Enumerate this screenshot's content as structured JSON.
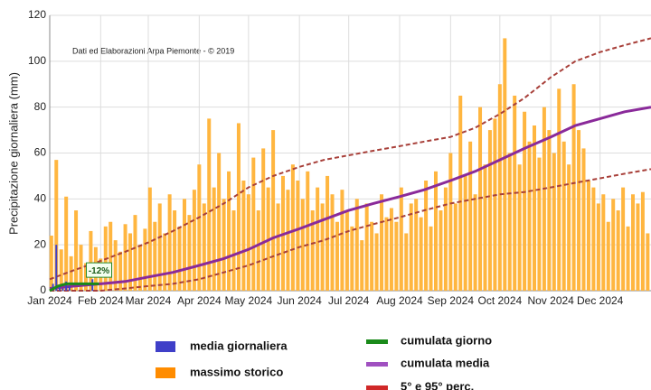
{
  "chart_data": {
    "type": "bar",
    "credit": "Dati ed Elaborazioni Arpa Piemonte - © 2019",
    "y_label": "Precipitazione giornaliera (mm)",
    "annotation": {
      "text": "-12%",
      "x": 30,
      "y": 9
    },
    "xlim": [
      0,
      366
    ],
    "xticks": [
      {
        "value": 0,
        "label": "Jan 2024"
      },
      {
        "value": 31,
        "label": "Feb 2024"
      },
      {
        "value": 60,
        "label": "Mar 2024"
      },
      {
        "value": 91,
        "label": "Apr 2024"
      },
      {
        "value": 121,
        "label": "May 2024"
      },
      {
        "value": 152,
        "label": "Jun 2024"
      },
      {
        "value": 182,
        "label": "Jul 2024"
      },
      {
        "value": 213,
        "label": "Aug 2024"
      },
      {
        "value": 244,
        "label": "Sep 2024"
      },
      {
        "value": 274,
        "label": "Oct 2024"
      },
      {
        "value": 305,
        "label": "Nov 2024"
      },
      {
        "value": 335,
        "label": "Dec 2024"
      }
    ],
    "ylim": [
      0,
      120
    ],
    "yticks": [
      0,
      20,
      40,
      60,
      80,
      100,
      120
    ],
    "grid": true,
    "series": [
      {
        "name": "media giornaliera",
        "type": "bar",
        "color": "#3f3fc8",
        "x": [
          2,
          4,
          6,
          8,
          10,
          12,
          26
        ],
        "values": [
          3,
          20,
          2,
          1,
          4,
          2,
          5
        ]
      },
      {
        "name": "massimo storico",
        "type": "bar",
        "color": "#ffb640",
        "x": [
          1,
          4,
          7,
          10,
          13,
          16,
          19,
          22,
          25,
          28,
          31,
          34,
          37,
          40,
          43,
          46,
          49,
          52,
          55,
          58,
          61,
          64,
          67,
          70,
          73,
          76,
          79,
          82,
          85,
          88,
          91,
          94,
          97,
          100,
          103,
          106,
          109,
          112,
          115,
          118,
          121,
          124,
          127,
          130,
          133,
          136,
          139,
          142,
          145,
          148,
          151,
          154,
          157,
          160,
          163,
          166,
          169,
          172,
          175,
          178,
          181,
          184,
          187,
          190,
          193,
          196,
          199,
          202,
          205,
          208,
          211,
          214,
          217,
          220,
          223,
          226,
          229,
          232,
          235,
          238,
          241,
          244,
          247,
          250,
          253,
          256,
          259,
          262,
          265,
          268,
          271,
          274,
          277,
          280,
          283,
          286,
          289,
          292,
          295,
          298,
          301,
          304,
          307,
          310,
          313,
          316,
          319,
          322,
          325,
          328,
          331,
          334,
          337,
          340,
          343,
          346,
          349,
          352,
          355,
          358,
          361,
          364
        ],
        "values": [
          24,
          57,
          18,
          41,
          15,
          35,
          20,
          12,
          26,
          19,
          14,
          28,
          30,
          22,
          17,
          29,
          25,
          33,
          20,
          27,
          45,
          30,
          38,
          25,
          42,
          35,
          28,
          40,
          33,
          44,
          55,
          38,
          75,
          45,
          60,
          40,
          52,
          35,
          73,
          48,
          42,
          58,
          35,
          62,
          45,
          70,
          38,
          50,
          44,
          55,
          48,
          40,
          52,
          35,
          45,
          38,
          50,
          42,
          30,
          44,
          35,
          28,
          40,
          22,
          38,
          30,
          25,
          42,
          32,
          36,
          30,
          45,
          25,
          38,
          40,
          32,
          48,
          28,
          52,
          35,
          45,
          60,
          38,
          85,
          50,
          65,
          42,
          80,
          55,
          70,
          75,
          90,
          110,
          60,
          85,
          55,
          78,
          65,
          72,
          58,
          80,
          70,
          60,
          88,
          65,
          55,
          90,
          70,
          62,
          48,
          45,
          38,
          42,
          30,
          40,
          35,
          45,
          28,
          42,
          38,
          43,
          25
        ]
      },
      {
        "name": "cumulata giorno",
        "type": "line",
        "color": "#1a8a1a",
        "x": [
          0,
          5,
          10,
          20,
          30
        ],
        "values": [
          0,
          2,
          3,
          3,
          3
        ]
      },
      {
        "name": "cumulata media",
        "type": "line",
        "color": "#8a2a9a",
        "x": [
          0,
          15,
          31,
          46,
          60,
          75,
          91,
          106,
          121,
          136,
          152,
          167,
          182,
          197,
          213,
          228,
          244,
          259,
          274,
          289,
          305,
          320,
          335,
          350,
          366
        ],
        "values": [
          1,
          2,
          3,
          4,
          6,
          8,
          11,
          14,
          18,
          23,
          27,
          31,
          35,
          38,
          41,
          44,
          48,
          52,
          57,
          62,
          67,
          72,
          75,
          78,
          80
        ]
      },
      {
        "name": "5° e 95° perc.",
        "type": "band",
        "color": "#a8403a",
        "x": [
          0,
          15,
          31,
          46,
          60,
          75,
          91,
          106,
          121,
          136,
          152,
          167,
          182,
          197,
          213,
          228,
          244,
          259,
          274,
          289,
          305,
          320,
          335,
          350,
          366
        ],
        "low": [
          0,
          0,
          0,
          1,
          2,
          3,
          5,
          8,
          11,
          15,
          19,
          22,
          26,
          29,
          32,
          35,
          38,
          40,
          42,
          43,
          45,
          47,
          49,
          51,
          53
        ],
        "high": [
          5,
          9,
          13,
          17,
          21,
          26,
          32,
          38,
          45,
          50,
          54,
          57,
          59,
          61,
          63,
          65,
          67,
          71,
          77,
          84,
          93,
          100,
          104,
          107,
          110
        ]
      }
    ]
  }
}
